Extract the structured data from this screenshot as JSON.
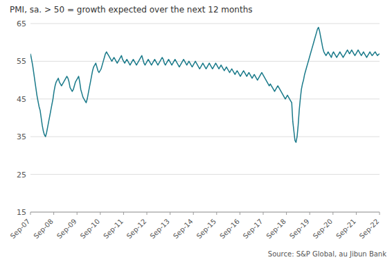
{
  "chart_data": {
    "type": "line",
    "title": "PMI, sa. > 50 = growth expected  over the next  12 months",
    "annotations": [
      "Source: S&P Global,  au Jibun Bank"
    ],
    "color": "#1a7a8a",
    "grid": true,
    "xlim": [
      0,
      180
    ],
    "xticks": [
      {
        "value": 0,
        "label": "Sep-07"
      },
      {
        "value": 12,
        "label": "Sep-08"
      },
      {
        "value": 24,
        "label": "Sep-09"
      },
      {
        "value": 36,
        "label": "Sep-10"
      },
      {
        "value": 48,
        "label": "Sep-11"
      },
      {
        "value": 60,
        "label": "Sep-12"
      },
      {
        "value": 72,
        "label": "Sep-13"
      },
      {
        "value": 84,
        "label": "Sep-14"
      },
      {
        "value": 96,
        "label": "Sep-15"
      },
      {
        "value": 108,
        "label": "Sep-16"
      },
      {
        "value": 120,
        "label": "Sep-17"
      },
      {
        "value": 132,
        "label": "Sep-18"
      },
      {
        "value": 144,
        "label": "Sep-19"
      },
      {
        "value": 156,
        "label": "Sep-20"
      },
      {
        "value": 168,
        "label": "Sep-21"
      },
      {
        "value": 180,
        "label": "Sep-22"
      }
    ],
    "ylim": [
      15,
      65
    ],
    "yticks": [
      15,
      25,
      35,
      45,
      55,
      65
    ],
    "x": [
      0,
      0.5521,
      1.1043,
      1.6564,
      2.2086,
      2.7607,
      3.3129,
      3.865,
      4.4172,
      4.9693,
      5.5215,
      6.0736,
      6.6258,
      7.1779,
      7.7301,
      8.2822,
      8.8344,
      9.3865,
      9.9387,
      10.4908,
      11.0429,
      11.5951,
      12.1472,
      12.6994,
      13.2515,
      13.8037,
      14.3558,
      14.908,
      15.4601,
      16.0123,
      16.5644,
      17.1166,
      17.6687,
      18.2209,
      18.773,
      19.3252,
      19.8773,
      20.4294,
      20.9816,
      21.5337,
      22.0859,
      22.638,
      23.1902,
      23.7423,
      24.2945,
      24.8466,
      25.3988,
      25.9509,
      26.5031,
      27.0552,
      27.6074,
      28.1595,
      28.7117,
      29.2638,
      29.816,
      30.3681,
      30.9202,
      31.4724,
      32.0245,
      32.5767,
      33.1288,
      33.681,
      34.2331,
      34.7853,
      35.3374,
      35.8896,
      36.4417,
      36.9939,
      37.546,
      38.0982,
      38.6503,
      39.2025,
      39.7546,
      40.3067,
      40.8589,
      41.411,
      41.9632,
      42.5153,
      43.0675,
      43.6196,
      44.1718,
      44.7239,
      45.2761,
      45.8282,
      46.3804,
      46.9325,
      47.4847,
      48.0368,
      48.589,
      49.1411,
      49.6933,
      50.2454,
      50.7975,
      51.3497,
      51.9018,
      52.454,
      53.0061,
      53.5583,
      54.1104,
      54.6626,
      55.2147,
      55.7669,
      56.319,
      56.8712,
      57.4233,
      57.9755,
      58.5276,
      59.0798,
      59.6319,
      60.184,
      60.7362,
      61.2883,
      61.8405,
      62.3926,
      62.9448,
      63.4969,
      64.0491,
      64.6012,
      65.1534,
      65.7055,
      66.2577,
      66.8098,
      67.362,
      67.9141,
      68.4663,
      69.0184,
      69.5706,
      70.1227,
      70.6748,
      71.227,
      71.7791,
      72.3313,
      72.8834,
      73.4356,
      73.9877,
      74.5399,
      75.092,
      75.6442,
      76.1963,
      76.7485,
      77.3006,
      77.8528,
      78.4049,
      78.9571,
      79.5092,
      80.0613,
      80.6135,
      81.1656,
      81.7178,
      82.2699,
      82.8221,
      83.3742,
      83.9264,
      84.4785,
      85.0307,
      85.5828,
      86.135,
      86.6871,
      87.2393,
      87.7914,
      88.3436,
      88.8957,
      89.4479,
      90,
      90.5521,
      91.1043,
      91.6564,
      92.2086,
      92.7607,
      93.3129,
      93.865,
      94.4172,
      94.9693,
      95.5215,
      96.0736,
      96.6258,
      97.1779,
      97.7301,
      98.2822,
      98.8344,
      99.3865,
      99.9387,
      100.4908,
      101.0429,
      101.5951,
      102.1472,
      102.6994,
      103.2515,
      103.8037,
      104.3558,
      104.908,
      105.4601,
      106.0123,
      106.5644,
      107.1166,
      107.6687,
      108.2209,
      108.773,
      109.3252,
      109.8773,
      110.4294,
      110.9816,
      111.5337,
      112.0859,
      112.638,
      113.1902,
      113.7423,
      114.2945,
      114.8466,
      115.3988,
      115.9509,
      116.5031,
      117.0552,
      117.6074,
      118.1595,
      118.7117,
      119.2638,
      119.816,
      120.3681,
      120.9202,
      121.4724,
      122.0245,
      122.5767,
      123.1288,
      123.681,
      124.2331,
      124.7853,
      125.3374,
      125.8896,
      126.4417,
      126.9939,
      127.546,
      128.0982,
      128.6503,
      129.2025,
      129.7546,
      130.3067,
      130.8589,
      131.411,
      131.9632,
      132.5153,
      133.0675,
      133.6196,
      134.1718,
      134.7239,
      135.2761,
      135.8282,
      136.3804,
      136.9325,
      137.4847,
      138.0368,
      138.589,
      139.1411,
      139.6933,
      140.2454,
      140.7975,
      141.3497,
      141.9018,
      142.454,
      143.0061,
      143.5583,
      144.1104,
      144.6626,
      145.2147,
      145.7669,
      146.319,
      146.8712,
      147.4233,
      147.9755,
      148.5276,
      149.0798,
      149.6319,
      150.184,
      150.7362,
      151.2883,
      151.8405,
      152.3926,
      152.9448,
      153.4969,
      154.0491,
      154.6012,
      155.1534,
      155.7055,
      156.2577,
      156.8098,
      157.362,
      157.9141,
      158.4663,
      159.0184,
      159.5706,
      160.1227,
      160.6748,
      161.227,
      161.7791,
      162.3313,
      162.8834,
      163.4356,
      163.9877,
      164.5399,
      165.092,
      165.6442,
      166.1963,
      166.7485,
      167.3006,
      167.8528,
      168.4049,
      168.9571,
      169.5092,
      170.0613,
      170.6135,
      171.1656,
      171.7178,
      172.2699,
      172.8221,
      173.3742,
      173.9264,
      174.4785,
      175.0307,
      175.5828,
      176.135,
      176.6871,
      177.2393,
      177.7914,
      178.3436,
      178.8957,
      179.4479,
      180
    ],
    "values": [
      57.0,
      55.5,
      54.0,
      52.0,
      50.0,
      48.0,
      46.0,
      44.5,
      43.0,
      42.0,
      40.0,
      38.0,
      36.5,
      35.5,
      35.0,
      36.0,
      37.5,
      39.0,
      40.5,
      42.0,
      43.5,
      45.0,
      47.0,
      48.5,
      49.5,
      50.0,
      50.5,
      49.5,
      49.0,
      48.5,
      49.0,
      49.5,
      50.0,
      50.5,
      51.0,
      50.5,
      49.5,
      48.0,
      47.5,
      47.0,
      47.5,
      48.5,
      49.5,
      50.0,
      50.5,
      51.0,
      49.5,
      47.5,
      46.5,
      45.5,
      45.0,
      44.5,
      44.0,
      45.0,
      46.5,
      48.0,
      49.5,
      51.0,
      52.5,
      53.5,
      54.0,
      54.5,
      53.5,
      52.5,
      52.0,
      52.5,
      53.0,
      54.0,
      55.0,
      56.0,
      57.0,
      57.5,
      57.0,
      56.5,
      56.0,
      55.5,
      55.0,
      55.5,
      56.0,
      55.5,
      55.0,
      54.5,
      55.0,
      55.5,
      56.0,
      56.5,
      55.5,
      55.0,
      54.5,
      55.0,
      55.5,
      55.0,
      54.5,
      54.0,
      54.5,
      55.0,
      55.5,
      55.0,
      54.5,
      54.0,
      54.5,
      55.0,
      55.5,
      56.0,
      56.5,
      55.5,
      54.5,
      54.0,
      54.5,
      55.0,
      55.5,
      55.0,
      54.5,
      54.0,
      54.5,
      55.0,
      55.5,
      55.0,
      54.5,
      54.0,
      54.5,
      55.0,
      55.5,
      56.0,
      55.5,
      54.5,
      54.0,
      54.5,
      55.0,
      55.5,
      55.0,
      54.5,
      54.0,
      54.5,
      55.0,
      55.5,
      55.0,
      54.5,
      54.0,
      53.5,
      54.0,
      54.5,
      55.0,
      55.5,
      55.0,
      54.5,
      54.0,
      54.5,
      55.0,
      54.5,
      54.0,
      53.5,
      54.0,
      54.5,
      55.0,
      54.5,
      54.0,
      53.5,
      53.0,
      53.5,
      54.0,
      54.5,
      54.0,
      53.5,
      53.0,
      53.5,
      54.0,
      54.5,
      54.0,
      53.5,
      53.0,
      53.5,
      54.0,
      54.5,
      54.0,
      53.5,
      53.0,
      53.5,
      54.0,
      53.5,
      53.0,
      52.5,
      53.0,
      53.5,
      53.0,
      52.5,
      52.0,
      52.5,
      53.0,
      52.5,
      52.0,
      51.5,
      52.0,
      52.5,
      52.0,
      51.5,
      51.0,
      51.5,
      52.0,
      52.5,
      52.0,
      51.5,
      51.0,
      51.5,
      52.0,
      51.5,
      51.0,
      50.5,
      51.0,
      51.5,
      51.0,
      50.5,
      50.0,
      50.5,
      51.0,
      51.5,
      52.0,
      51.5,
      51.0,
      50.5,
      50.0,
      49.5,
      49.0,
      48.5,
      49.0,
      48.5,
      48.0,
      47.5,
      47.0,
      47.5,
      48.0,
      48.5,
      48.0,
      47.5,
      47.0,
      46.5,
      46.0,
      45.5,
      45.0,
      45.5,
      46.0,
      45.5,
      45.0,
      44.5,
      44.0,
      39.0,
      36.5,
      34.0,
      33.5,
      35.0,
      38.0,
      42.0,
      45.0,
      47.5,
      49.0,
      50.0,
      51.5,
      52.5,
      53.5,
      54.5,
      55.5,
      56.5,
      57.5,
      58.5,
      59.5,
      60.5,
      61.5,
      62.5,
      63.5,
      64.0,
      63.0,
      61.5,
      60.0,
      58.5,
      57.5,
      57.0,
      56.5,
      57.0,
      57.5,
      57.0,
      56.5,
      56.0,
      57.0,
      57.5,
      57.0,
      56.5,
      56.0,
      56.5,
      57.0,
      57.5,
      57.0,
      56.5,
      56.0,
      56.5,
      57.0,
      57.5,
      58.0,
      57.5,
      57.0,
      57.5,
      58.0,
      57.5,
      57.0,
      56.5,
      57.0,
      57.5,
      58.0,
      57.5,
      57.0,
      56.5,
      57.0,
      57.5,
      57.0,
      56.5,
      56.0,
      56.5,
      57.0,
      57.5,
      57.0,
      56.5,
      56.8,
      57.2,
      57.5,
      57.0,
      56.5,
      56.8,
      57.0
    ]
  }
}
